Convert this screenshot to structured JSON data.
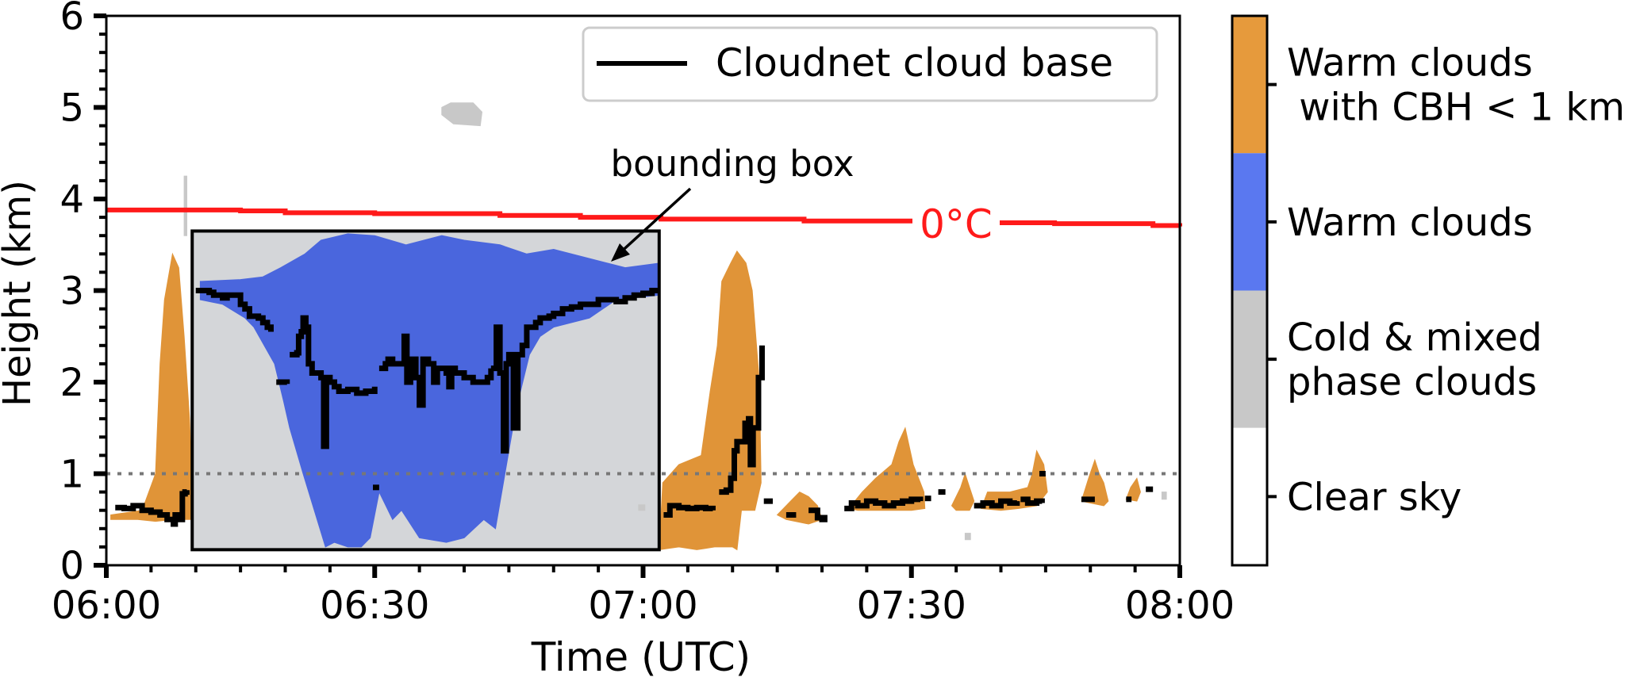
{
  "chart_data": {
    "type": "heatmap",
    "xlabel": "Time (UTC)",
    "ylabel": "Height (km)",
    "xlim_minutes": [
      0,
      120
    ],
    "ylim": [
      0,
      6
    ],
    "x_tick_labels": [
      "06:00",
      "06:30",
      "07:00",
      "07:30",
      "08:00"
    ],
    "x_tick_values": [
      0,
      30,
      60,
      90,
      120
    ],
    "y_tick_labels": [
      "0",
      "1",
      "2",
      "3",
      "4",
      "5",
      "6"
    ],
    "y_tick_values": [
      0,
      1,
      2,
      3,
      4,
      5,
      6
    ],
    "legend": {
      "placement": "top-right",
      "entries": [
        {
          "label": "Cloudnet cloud base",
          "color": "#000000"
        }
      ]
    },
    "colorbar": {
      "categories": [
        {
          "label_lines": [
            "Warm clouds",
            " with CBH < 1 km"
          ],
          "color": "#e69a3c"
        },
        {
          "label_lines": [
            "Warm clouds"
          ],
          "color": "#5a78f0"
        },
        {
          "label_lines": [
            "Cold & mixed",
            "phase clouds"
          ],
          "color": "#c8c8c8"
        },
        {
          "label_lines": [
            "Clear sky"
          ],
          "color": "#ffffff"
        }
      ]
    },
    "freezing_level": {
      "label": "0°C",
      "color": "#ff1a1a",
      "x": [
        0,
        8,
        15,
        20,
        30,
        44,
        53,
        62,
        68,
        78,
        84,
        95,
        100,
        106,
        114,
        117,
        120
      ],
      "y": [
        3.88,
        3.88,
        3.87,
        3.85,
        3.84,
        3.82,
        3.8,
        3.78,
        3.78,
        3.76,
        3.76,
        3.74,
        3.74,
        3.73,
        3.73,
        3.71,
        3.7
      ]
    },
    "one_km_line": {
      "y": 1.0,
      "color": "#777777",
      "style": "dotted"
    },
    "bounding_box": {
      "label": "bounding box",
      "x": [
        9.6,
        61.8
      ],
      "y": [
        0.17,
        3.65
      ]
    },
    "cloud_regions": [
      {
        "class": "Cold & mixed phase clouds",
        "color": "#d4d6d9",
        "x": [
          9.6,
          61.8,
          61.8,
          9.6
        ],
        "y": [
          0.17,
          0.17,
          3.65,
          3.65
        ]
      },
      {
        "class": "Cold & mixed phase clouds",
        "color": "#c8c8c8",
        "x": [
          37.5,
          38.5,
          41,
          42,
          41.8,
          38.8,
          37.5
        ],
        "y": [
          5.0,
          5.05,
          5.05,
          4.95,
          4.8,
          4.82,
          4.92
        ]
      },
      {
        "class": "Cold & mixed phase clouds",
        "color": "#c8c8c8",
        "x": [
          8.7,
          9.0,
          9.0,
          8.7
        ],
        "y": [
          3.6,
          3.6,
          4.25,
          4.25
        ]
      },
      {
        "class": "Warm clouds",
        "color": "#4a66dd",
        "x": [
          10.5,
          15,
          17.5,
          19.5,
          22.2,
          24,
          27,
          30,
          33.5,
          37.5,
          40,
          44,
          47,
          50,
          54,
          58,
          61.8,
          61.8,
          57,
          54,
          50,
          48.5,
          47.3,
          45.8,
          43.5,
          42.2,
          40,
          38,
          35,
          33,
          32,
          30.5,
          29.5,
          28.5,
          27,
          25.5,
          24.5,
          22,
          20.5,
          19.8,
          18.8,
          16.5,
          15.5,
          13,
          10.5
        ],
        "y": [
          3.1,
          3.12,
          3.15,
          3.25,
          3.4,
          3.55,
          3.62,
          3.6,
          3.5,
          3.6,
          3.55,
          3.5,
          3.4,
          3.45,
          3.35,
          3.25,
          3.3,
          2.95,
          2.9,
          2.7,
          2.6,
          2.5,
          2.3,
          1.7,
          0.4,
          0.5,
          0.3,
          0.25,
          0.3,
          0.6,
          0.5,
          0.8,
          0.3,
          0.2,
          0.2,
          0.25,
          0.2,
          1.0,
          1.5,
          1.8,
          2.2,
          2.6,
          2.7,
          2.85,
          2.9
        ]
      },
      {
        "class": "Warm clouds with CBH < 1 km",
        "color": "#e09438",
        "x": [
          0.5,
          4,
          5.5,
          6,
          6.5,
          7.4,
          8.1,
          8.7,
          9.3,
          9.6,
          9.4,
          7.5,
          5.5,
          3.5,
          0.5
        ],
        "y": [
          0.55,
          0.6,
          1.0,
          2.2,
          2.9,
          3.4,
          3.25,
          2.5,
          1.6,
          0.85,
          0.5,
          0.5,
          0.48,
          0.5,
          0.5
        ]
      },
      {
        "class": "Warm clouds with CBH < 1 km",
        "color": "#e09438",
        "x": [
          61.8,
          62.2,
          64,
          66.5,
          67.5,
          68.3,
          68.8,
          69.8,
          70.5,
          71.5,
          72.2,
          73,
          73.2,
          72.5,
          71,
          70.5,
          70,
          68,
          66,
          64,
          61.8
        ],
        "y": [
          0.17,
          0.9,
          1.1,
          1.2,
          1.9,
          2.4,
          3.1,
          3.3,
          3.43,
          3.3,
          3.0,
          2.0,
          0.9,
          0.6,
          0.6,
          0.17,
          0.2,
          0.2,
          0.17,
          0.2,
          0.17
        ]
      },
      {
        "class": "Warm clouds with CBH < 1 km",
        "color": "#e09438",
        "x": [
          83,
          84.5,
          86,
          87.8,
          88.6,
          89.3,
          90.2,
          90.8,
          91.4,
          91.5,
          90,
          88,
          86,
          84,
          83
        ],
        "y": [
          0.62,
          0.8,
          0.95,
          1.1,
          1.35,
          1.5,
          1.1,
          0.95,
          0.8,
          0.62,
          0.6,
          0.6,
          0.6,
          0.6,
          0.62
        ]
      },
      {
        "class": "Warm clouds with CBH < 1 km",
        "color": "#e09438",
        "x": [
          75,
          76.5,
          77.5,
          78.5,
          79.5,
          80,
          78.5,
          76,
          75
        ],
        "y": [
          0.55,
          0.7,
          0.8,
          0.75,
          0.65,
          0.5,
          0.45,
          0.5,
          0.55
        ]
      },
      {
        "class": "Warm clouds with CBH < 1 km",
        "color": "#e09438",
        "x": [
          94.5,
          95.5,
          96,
          96.5,
          97,
          96.5,
          95,
          94.5
        ],
        "y": [
          0.65,
          0.85,
          1.0,
          0.85,
          0.7,
          0.6,
          0.6,
          0.65
        ]
      },
      {
        "class": "Warm clouds with CBH < 1 km",
        "color": "#e09438",
        "x": [
          97.8,
          98.5,
          101,
          103,
          103.5,
          104,
          104.8,
          105.2,
          104,
          102,
          100,
          97.8
        ],
        "y": [
          0.62,
          0.8,
          0.8,
          0.85,
          1.0,
          1.25,
          1.1,
          0.8,
          0.65,
          0.62,
          0.6,
          0.62
        ]
      },
      {
        "class": "Warm clouds with CBH < 1 km",
        "color": "#e09438",
        "x": [
          109,
          109.8,
          110.5,
          111,
          111.5,
          112,
          111.5,
          110,
          109
        ],
        "y": [
          0.7,
          0.95,
          1.15,
          1.0,
          0.9,
          0.7,
          0.65,
          0.68,
          0.7
        ]
      },
      {
        "class": "Warm clouds with CBH < 1 km",
        "color": "#e09438",
        "x": [
          114,
          114.5,
          115.2,
          115.6,
          115.2,
          114
        ],
        "y": [
          0.72,
          0.85,
          0.95,
          0.8,
          0.7,
          0.72
        ]
      },
      {
        "class": "Cold & mixed phase clouds",
        "color": "#c8c8c8",
        "x": [
          96,
          96.6,
          96.6,
          96
        ],
        "y": [
          0.28,
          0.28,
          0.35,
          0.35
        ]
      },
      {
        "class": "Cold & mixed phase clouds",
        "color": "#c8c8c8",
        "x": [
          59.5,
          60.2,
          60.2,
          59.5
        ],
        "y": [
          0.6,
          0.6,
          0.66,
          0.66
        ]
      },
      {
        "class": "Cold & mixed phase clouds",
        "color": "#c8c8c8",
        "x": [
          118,
          118.5,
          118.5,
          118
        ],
        "y": [
          0.72,
          0.72,
          0.8,
          0.8
        ]
      }
    ],
    "cloud_base_series": [
      {
        "x": [
          1,
          2,
          3,
          4,
          5,
          6,
          6.8,
          7.5,
          7.7,
          8.2,
          8.5,
          8.8,
          9.0
        ],
        "y": [
          0.63,
          0.62,
          0.65,
          0.6,
          0.58,
          0.55,
          0.5,
          0.45,
          0.55,
          0.5,
          0.78,
          0.8,
          0.82
        ]
      },
      {
        "x": [
          10,
          11.5,
          12,
          13,
          13.5,
          14.5,
          15,
          15.5,
          16,
          17,
          17.5,
          18,
          18.4
        ],
        "y": [
          3.0,
          2.98,
          2.95,
          2.92,
          2.95,
          2.95,
          2.85,
          2.8,
          2.72,
          2.7,
          2.65,
          2.6,
          2.55
        ]
      },
      {
        "x": [
          19,
          20.2
        ],
        "y": [
          2.0,
          1.98
        ]
      },
      {
        "x": [
          20.5,
          21.3,
          21.5,
          21.8,
          22,
          22.3,
          22.6,
          23,
          24,
          24.3,
          24.6,
          25,
          25.5,
          26,
          27,
          28,
          29,
          30
        ],
        "y": [
          2.3,
          2.32,
          2.5,
          2.55,
          2.7,
          2.6,
          2.2,
          2.1,
          2.05,
          1.3,
          2.05,
          2.0,
          1.95,
          1.9,
          1.92,
          1.88,
          1.9,
          1.95
        ]
      },
      {
        "x": [
          30.5,
          31.2,
          31.5,
          32,
          33,
          33.3,
          33.6,
          34,
          34.6,
          35,
          35.4,
          36,
          36.6,
          37,
          38,
          38.3,
          38.6,
          39,
          40,
          41,
          41.5,
          42,
          42.6,
          43
        ],
        "y": [
          2.15,
          2.2,
          2.25,
          2.2,
          2.2,
          2.5,
          2.0,
          2.25,
          2.05,
          1.75,
          2.25,
          2.2,
          2.0,
          2.15,
          2.1,
          1.95,
          2.15,
          2.1,
          2.05,
          2.0,
          2.0,
          2.0,
          2.05,
          2.15
        ]
      },
      {
        "x": [
          43,
          43.6,
          44,
          44.4,
          44.7,
          45,
          45.5,
          46,
          46.5,
          47,
          47.5,
          48,
          48.5,
          49.5,
          50,
          51,
          52,
          53,
          54,
          55,
          56,
          57,
          58,
          59,
          60,
          61,
          61.8
        ],
        "y": [
          2.15,
          2.6,
          2.1,
          1.25,
          2.2,
          2.3,
          1.5,
          2.3,
          2.4,
          2.6,
          2.6,
          2.65,
          2.7,
          2.72,
          2.75,
          2.8,
          2.82,
          2.85,
          2.85,
          2.9,
          2.9,
          2.88,
          2.92,
          2.95,
          2.97,
          3.0,
          3.0
        ]
      },
      {
        "x": [
          29.8,
          30.5
        ],
        "y": [
          0.85,
          0.85
        ]
      },
      {
        "x": [
          62.3,
          63,
          64,
          65,
          66,
          67,
          67.8
        ],
        "y": [
          0.55,
          0.65,
          0.63,
          0.62,
          0.63,
          0.62,
          0.6
        ]
      },
      {
        "x": [
          68.5,
          69.3,
          69.8,
          70.2,
          70.5,
          71.4,
          71.8,
          72,
          72.3,
          72.6,
          72.9,
          73.3
        ],
        "y": [
          0.8,
          0.82,
          0.95,
          1.25,
          1.35,
          1.55,
          1.6,
          1.1,
          1.5,
          1.5,
          2.05,
          2.4
        ]
      },
      {
        "x": [
          73.5,
          74.5
        ],
        "y": [
          0.7,
          0.7
        ]
      },
      {
        "x": [
          76,
          76.8
        ],
        "y": [
          0.55,
          0.58
        ]
      },
      {
        "x": [
          78.5,
          79,
          79.5,
          80,
          80.3
        ],
        "y": [
          0.6,
          0.6,
          0.52,
          0.5,
          0.55
        ]
      },
      {
        "x": [
          82.5,
          83.3,
          84,
          85,
          86,
          87,
          88,
          89,
          90,
          91
        ],
        "y": [
          0.62,
          0.68,
          0.65,
          0.7,
          0.68,
          0.65,
          0.68,
          0.7,
          0.72,
          0.7
        ]
      },
      {
        "x": [
          91.5,
          92.2
        ],
        "y": [
          0.73,
          0.73
        ]
      },
      {
        "x": [
          93,
          93.8
        ],
        "y": [
          0.8,
          0.8
        ]
      },
      {
        "x": [
          97,
          98,
          99,
          100,
          101,
          101.8
        ],
        "y": [
          0.65,
          0.68,
          0.65,
          0.7,
          0.68,
          0.7
        ]
      },
      {
        "x": [
          102.2,
          103,
          104,
          104.6
        ],
        "y": [
          0.72,
          0.68,
          0.7,
          0.68
        ]
      },
      {
        "x": [
          104.3,
          105
        ],
        "y": [
          1.0,
          1.0
        ]
      },
      {
        "x": [
          109,
          110.5
        ],
        "y": [
          0.72,
          0.72
        ]
      },
      {
        "x": [
          114,
          114.6
        ],
        "y": [
          0.72,
          0.72
        ]
      },
      {
        "x": [
          116.2,
          117
        ],
        "y": [
          0.83,
          0.83
        ]
      }
    ]
  }
}
